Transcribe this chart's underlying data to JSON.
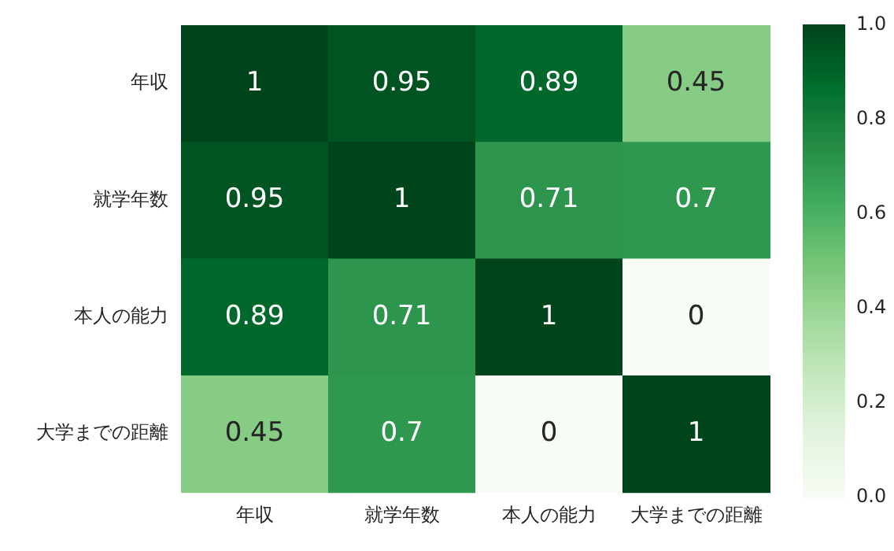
{
  "chart_data": {
    "type": "heatmap",
    "categories": [
      "年収",
      "就学年数",
      "本人の能力",
      "大学までの距離"
    ],
    "y_categories": [
      "年収",
      "就学年数",
      "本人の能力",
      "大学までの距離"
    ],
    "cells": [
      [
        1,
        0.95,
        0.89,
        0.45
      ],
      [
        0.95,
        1,
        0.71,
        0.7
      ],
      [
        0.89,
        0.71,
        1,
        0
      ],
      [
        0.45,
        0.7,
        0,
        1
      ]
    ],
    "data_labels": true,
    "clim": [
      0,
      1
    ],
    "cticks": [
      {
        "value": 0,
        "label": "0.0"
      },
      {
        "value": 0.2,
        "label": "0.2"
      },
      {
        "value": 0.4,
        "label": "0.4"
      },
      {
        "value": 0.6,
        "label": "0.6"
      },
      {
        "value": 0.8,
        "label": "0.8"
      },
      {
        "value": 1,
        "label": "1.0"
      }
    ]
  }
}
